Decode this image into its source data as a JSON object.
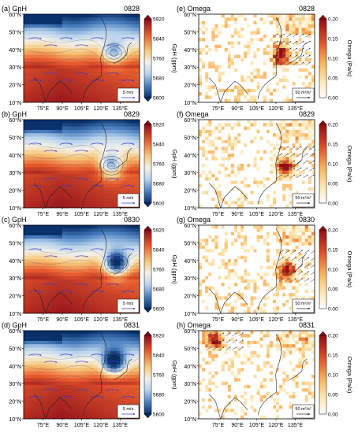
{
  "chart_data": {
    "type": "heatmap",
    "x_ticks": [
      "75°E",
      "90°E",
      "105°E",
      "120°E",
      "135°E"
    ],
    "y_ticks": [
      "10°N",
      "20°N",
      "30°N",
      "40°N",
      "50°N",
      "60°N"
    ],
    "gph_colorbar": {
      "label": "GpH (gpm)",
      "ticks": [
        5920,
        5840,
        5760,
        5680,
        5600
      ],
      "range": [
        5600,
        5920
      ]
    },
    "omega_colorbar": {
      "label": "Omega (Pa/s)",
      "ticks": [
        "0.20",
        "0.15",
        "0.10",
        "0.05",
        "0.00"
      ],
      "range": [
        0,
        0.2
      ]
    },
    "gph_vector_ref": "5 m/s",
    "omega_vector_ref": "50 m²/s²",
    "panels": [
      {
        "id": "a",
        "label": "(a) GpH",
        "date": "0828",
        "variable": "GpH",
        "low_center": [
          130,
          38
        ],
        "low_value": 5720
      },
      {
        "id": "b",
        "label": "(b) GpH",
        "date": "0829",
        "variable": "GpH",
        "low_center": [
          128,
          34
        ],
        "low_value": 5680
      },
      {
        "id": "c",
        "label": "(c) GpH",
        "date": "0830",
        "variable": "GpH",
        "low_center": [
          132,
          38
        ],
        "low_value": 5620
      },
      {
        "id": "d",
        "label": "(d) GpH",
        "date": "0831",
        "variable": "GpH",
        "low_center": [
          130,
          42
        ],
        "low_value": 5640
      },
      {
        "id": "e",
        "label": "(e) Omega",
        "date": "0828",
        "variable": "Omega",
        "max_center": [
          124,
          37
        ],
        "max_value": 0.2
      },
      {
        "id": "f",
        "label": "(f) Omega",
        "date": "0829",
        "variable": "Omega",
        "max_center": [
          127,
          33
        ],
        "max_value": 0.2
      },
      {
        "id": "g",
        "label": "(g) Omega",
        "date": "0830",
        "variable": "Omega",
        "max_center": [
          128,
          34
        ],
        "max_value": 0.2
      },
      {
        "id": "h",
        "label": "(h) Omega",
        "date": "0831",
        "variable": "Omega",
        "max_center": [
          72,
          55
        ],
        "max_value": 0.18
      }
    ]
  }
}
